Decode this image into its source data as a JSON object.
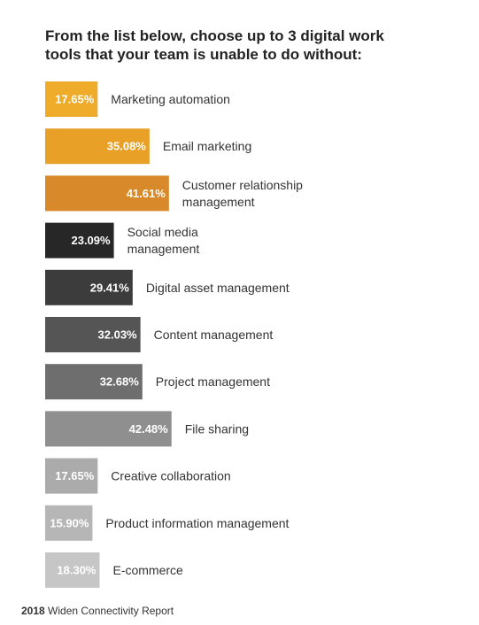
{
  "title": "From the list below, choose up to 3 digital work tools that your team is unable to do without:",
  "footer": {
    "year": "2018",
    "text": "Widen Connectivity Report"
  },
  "chart_data": {
    "type": "bar",
    "orientation": "horizontal",
    "title": "From the list below, choose up to 3 digital work tools that your team is unable to do without:",
    "categories": [
      "Marketing automation",
      "Email marketing",
      "Customer relationship management",
      "Social media management",
      "Digital asset management",
      "Content management",
      "Project management",
      "File sharing",
      "Creative collaboration",
      "Product information management",
      "E-commerce"
    ],
    "category_lines": [
      [
        "Marketing automation"
      ],
      [
        "Email marketing"
      ],
      [
        "Customer relationship",
        "management"
      ],
      [
        "Social media",
        "management"
      ],
      [
        "Digital asset management"
      ],
      [
        "Content management"
      ],
      [
        "Project management"
      ],
      [
        "File sharing"
      ],
      [
        "Creative collaboration"
      ],
      [
        "Product information management"
      ],
      [
        "E-commerce"
      ]
    ],
    "values": [
      17.65,
      35.08,
      41.61,
      23.09,
      29.41,
      32.03,
      32.68,
      42.48,
      17.65,
      15.9,
      18.3
    ],
    "value_labels": [
      "17.65%",
      "35.08%",
      "41.61%",
      "23.09%",
      "29.41%",
      "32.03%",
      "32.68%",
      "42.48%",
      "17.65%",
      "15.90%",
      "18.30%"
    ],
    "colors": [
      "#eeac2a",
      "#e8a026",
      "#d8892a",
      "#272727",
      "#3c3c3c",
      "#555555",
      "#6e6e6e",
      "#8f8f8f",
      "#ababab",
      "#b6b6b6",
      "#c6c6c6"
    ],
    "label_color": "#ffffff",
    "category_color": "#333333",
    "xlim": [
      0,
      50
    ],
    "grid": false,
    "legend": "none"
  }
}
